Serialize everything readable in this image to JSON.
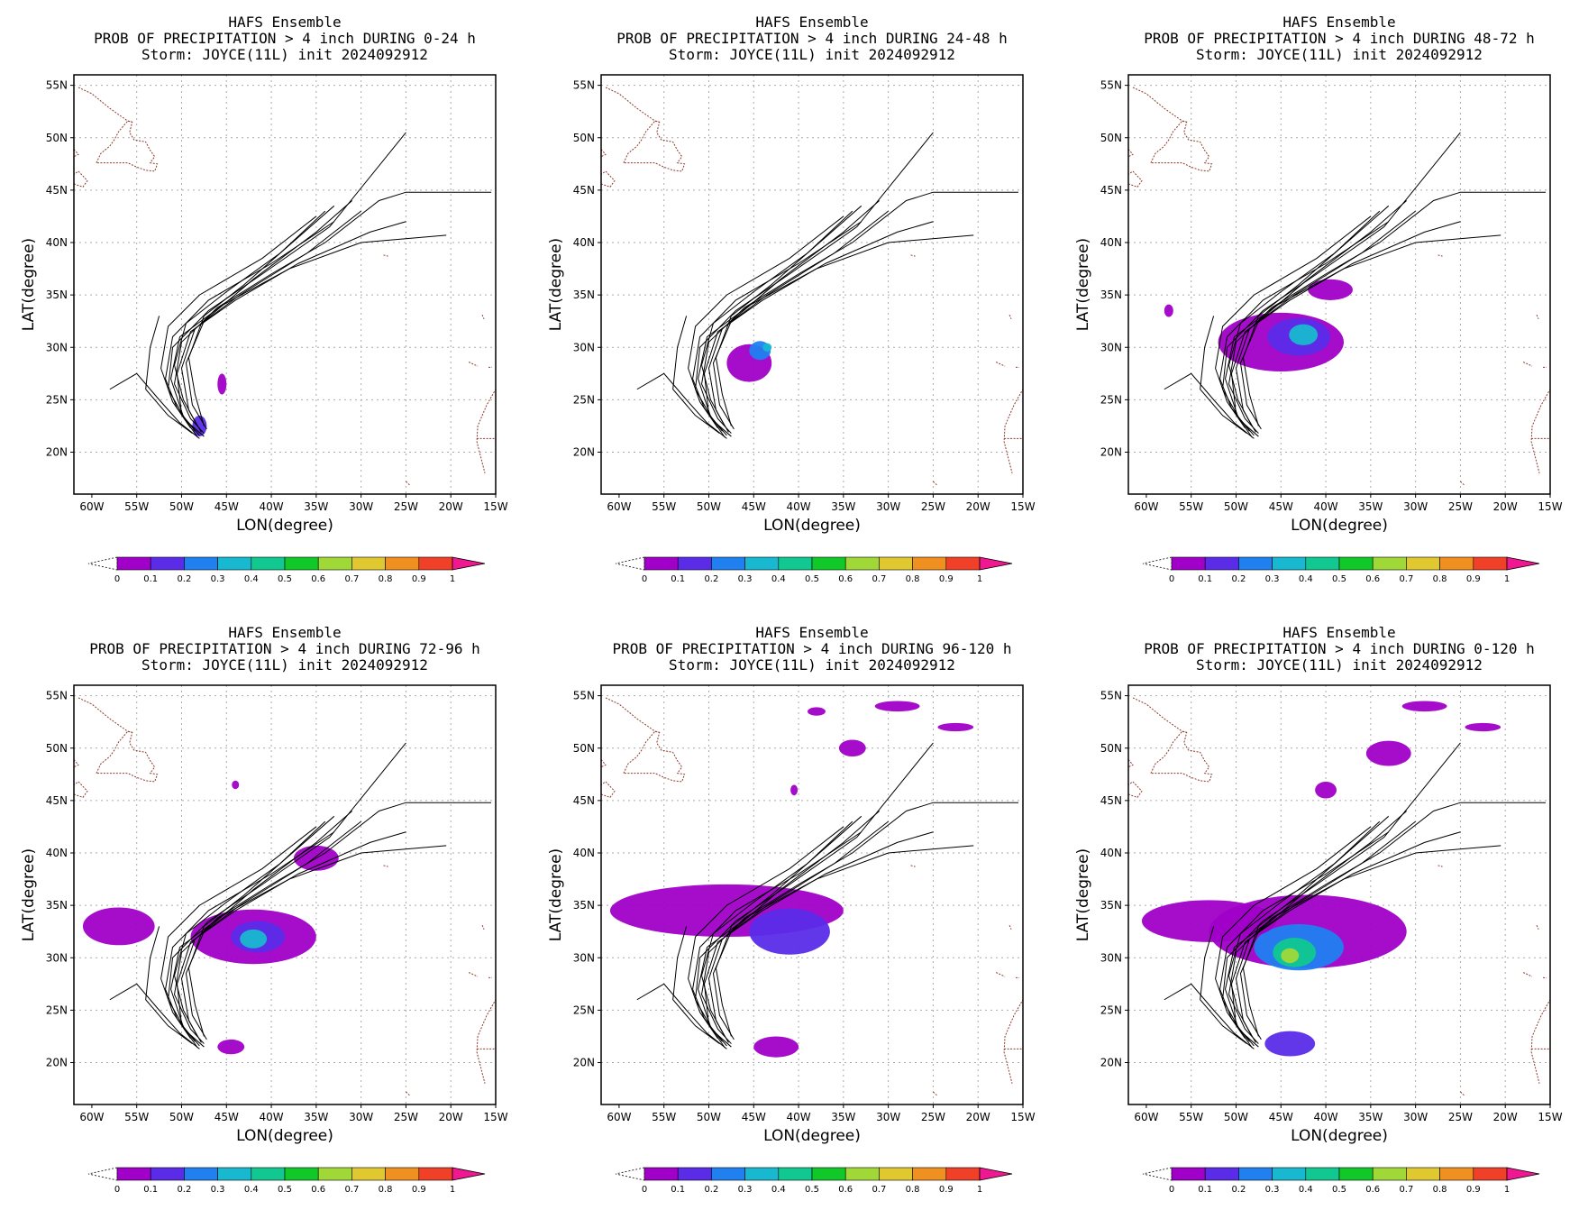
{
  "figure": {
    "panels": [
      {
        "title1": "HAFS Ensemble",
        "title2": "PROB OF PRECIPITATION > 4 inch DURING  0-24 h",
        "title3": "Storm: JOYCE(11L) init 2024092912",
        "period": "0-24 h"
      },
      {
        "title1": "HAFS Ensemble",
        "title2": "PROB OF PRECIPITATION > 4 inch DURING 24-48 h",
        "title3": "Storm: JOYCE(11L) init 2024092912",
        "period": "24-48 h"
      },
      {
        "title1": "HAFS Ensemble",
        "title2": "PROB OF PRECIPITATION > 4 inch DURING 48-72 h",
        "title3": "Storm: JOYCE(11L) init 2024092912",
        "period": "48-72 h"
      },
      {
        "title1": "HAFS Ensemble",
        "title2": "PROB OF PRECIPITATION > 4 inch DURING 72-96 h",
        "title3": "Storm: JOYCE(11L) init 2024092912",
        "period": "72-96 h"
      },
      {
        "title1": "HAFS Ensemble",
        "title2": "PROB OF PRECIPITATION > 4 inch DURING 96-120 h",
        "title3": "Storm: JOYCE(11L) init 2024092912",
        "period": "96-120 h"
      },
      {
        "title1": "HAFS Ensemble",
        "title2": "PROB OF PRECIPITATION > 4 inch DURING 0-120 h",
        "title3": "Storm: JOYCE(11L) init 2024092912",
        "period": "0-120 h"
      }
    ],
    "xlabel": "LON(degree)",
    "ylabel": "LAT(degree)",
    "lon_ticks": [
      "60W",
      "55W",
      "50W",
      "45W",
      "40W",
      "35W",
      "30W",
      "25W",
      "20W",
      "15W"
    ],
    "lat_ticks": [
      "20N",
      "25N",
      "30N",
      "35N",
      "40N",
      "45N",
      "50N",
      "55N"
    ],
    "colorbar_labels": [
      "0",
      "0.1",
      "0.2",
      "0.3",
      "0.4",
      "0.5",
      "0.6",
      "0.7",
      "0.8",
      "0.9",
      "1"
    ],
    "colorbar_colors": [
      "#a000c8",
      "#5a2ce8",
      "#2080f0",
      "#18b8d0",
      "#10c890",
      "#10c828",
      "#a0d838",
      "#e0c830",
      "#f09020",
      "#f04028"
    ],
    "colorbar_over_color": "#f01890"
  },
  "chart_data": {
    "type": "heatmap",
    "xlim": [
      -62,
      -15
    ],
    "ylim": [
      16,
      56
    ],
    "grid": true,
    "ensemble_tracks": [
      [
        [
          -47.5,
          21.5
        ],
        [
          -49.5,
          23
        ],
        [
          -51.5,
          26
        ],
        [
          -51,
          30
        ],
        [
          -47,
          33.5
        ],
        [
          -41,
          37
        ],
        [
          -33.5,
          41.5
        ],
        [
          -25,
          50.5
        ]
      ],
      [
        [
          -47.5,
          21.8
        ],
        [
          -49,
          23.2
        ],
        [
          -50.8,
          26.5
        ],
        [
          -50,
          30.5
        ],
        [
          -46,
          33.8
        ],
        [
          -40,
          37
        ],
        [
          -34,
          40
        ],
        [
          -28,
          44
        ],
        [
          -25,
          44.8
        ],
        [
          -15.5,
          44.8
        ]
      ],
      [
        [
          -48,
          21.6
        ],
        [
          -49.8,
          23.4
        ],
        [
          -51.2,
          27
        ],
        [
          -50.2,
          31
        ],
        [
          -45.5,
          34
        ],
        [
          -38,
          37.5
        ],
        [
          -30,
          40
        ],
        [
          -20.5,
          40.7
        ]
      ],
      [
        [
          -48.2,
          21.4
        ],
        [
          -50,
          23.6
        ],
        [
          -50.5,
          27.5
        ],
        [
          -49,
          31.5
        ],
        [
          -44,
          34.5
        ],
        [
          -37,
          38
        ],
        [
          -29,
          41
        ],
        [
          -25,
          42
        ]
      ],
      [
        [
          -47.8,
          21.9
        ],
        [
          -49.2,
          24
        ],
        [
          -50,
          28
        ],
        [
          -48.5,
          31.8
        ],
        [
          -43.5,
          35
        ],
        [
          -36,
          39
        ],
        [
          -30,
          43
        ]
      ],
      [
        [
          -48.5,
          22
        ],
        [
          -50.5,
          24.2
        ],
        [
          -51.8,
          27
        ],
        [
          -51,
          31
        ],
        [
          -47,
          34.5
        ],
        [
          -40,
          38
        ],
        [
          -33,
          42
        ]
      ],
      [
        [
          -47.2,
          22.2
        ],
        [
          -48.8,
          24.5
        ],
        [
          -49.5,
          28.5
        ],
        [
          -47.5,
          32.5
        ],
        [
          -42,
          36.5
        ],
        [
          -35,
          41
        ],
        [
          -31,
          44
        ]
      ],
      [
        [
          -49,
          22.3
        ],
        [
          -51,
          24.8
        ],
        [
          -52.3,
          28
        ],
        [
          -51.5,
          32
        ],
        [
          -48,
          35
        ],
        [
          -41,
          38.5
        ],
        [
          -35,
          42.5
        ]
      ],
      [
        [
          -48,
          21.3
        ],
        [
          -50.2,
          22.8
        ],
        [
          -52.5,
          25
        ],
        [
          -55,
          27.5
        ],
        [
          -58,
          26
        ]
      ],
      [
        [
          -48.8,
          21.8
        ],
        [
          -51.5,
          23.5
        ],
        [
          -54,
          26
        ],
        [
          -53.5,
          30
        ],
        [
          -52.5,
          33
        ]
      ],
      [
        [
          -47.5,
          22.5
        ],
        [
          -48.5,
          25.5
        ],
        [
          -49.2,
          29
        ],
        [
          -47.5,
          33
        ],
        [
          -43,
          36
        ],
        [
          -37,
          40.5
        ],
        [
          -33,
          43.5
        ]
      ],
      [
        [
          -48.3,
          22.6
        ],
        [
          -49.8,
          25
        ],
        [
          -50.8,
          28.3
        ],
        [
          -49.5,
          32.3
        ],
        [
          -45,
          35.3
        ],
        [
          -39,
          39
        ],
        [
          -34,
          43
        ]
      ]
    ],
    "panels": [
      {
        "period": "0-24 h",
        "prob_areas": [
          {
            "lon": -48,
            "lat": 22.5,
            "rx": 0.8,
            "ry": 1.0,
            "p": 0.12
          },
          {
            "lon": -45.5,
            "lat": 26.5,
            "rx": 0.5,
            "ry": 1.0,
            "p": 0.08
          }
        ]
      },
      {
        "period": "24-48 h",
        "prob_areas": [
          {
            "lon": -45.5,
            "lat": 28.5,
            "rx": 2.5,
            "ry": 1.8,
            "p": 0.08
          },
          {
            "lon": -44.3,
            "lat": 29.7,
            "rx": 1.2,
            "ry": 0.9,
            "p": 0.25
          },
          {
            "lon": -43.5,
            "lat": 30.0,
            "rx": 0.5,
            "ry": 0.4,
            "p": 0.38
          }
        ]
      },
      {
        "period": "48-72 h",
        "prob_areas": [
          {
            "lon": -45,
            "lat": 30.5,
            "rx": 7,
            "ry": 2.8,
            "p": 0.06
          },
          {
            "lon": -43,
            "lat": 31,
            "rx": 3.5,
            "ry": 1.8,
            "p": 0.18
          },
          {
            "lon": -42.5,
            "lat": 31.2,
            "rx": 1.6,
            "ry": 1.0,
            "p": 0.32
          },
          {
            "lon": -57.5,
            "lat": 33.5,
            "rx": 0.5,
            "ry": 0.6,
            "p": 0.05
          },
          {
            "lon": -39.5,
            "lat": 35.5,
            "rx": 2.5,
            "ry": 1.0,
            "p": 0.05
          }
        ]
      },
      {
        "period": "72-96 h",
        "prob_areas": [
          {
            "lon": -42,
            "lat": 32,
            "rx": 7,
            "ry": 2.6,
            "p": 0.06
          },
          {
            "lon": -41.5,
            "lat": 32,
            "rx": 3,
            "ry": 1.5,
            "p": 0.18
          },
          {
            "lon": -42,
            "lat": 31.8,
            "rx": 1.5,
            "ry": 0.9,
            "p": 0.33
          },
          {
            "lon": -57,
            "lat": 33,
            "rx": 4,
            "ry": 1.8,
            "p": 0.05
          },
          {
            "lon": -35,
            "lat": 39.5,
            "rx": 2.5,
            "ry": 1.2,
            "p": 0.05
          },
          {
            "lon": -44.5,
            "lat": 21.5,
            "rx": 1.5,
            "ry": 0.7,
            "p": 0.06
          },
          {
            "lon": -44,
            "lat": 46.5,
            "rx": 0.4,
            "ry": 0.4,
            "p": 0.05
          }
        ]
      },
      {
        "period": "96-120 h",
        "prob_areas": [
          {
            "lon": -48,
            "lat": 34.5,
            "rx": 13,
            "ry": 2.5,
            "p": 0.05
          },
          {
            "lon": -41,
            "lat": 32.5,
            "rx": 4.5,
            "ry": 2.2,
            "p": 0.1
          },
          {
            "lon": -42.5,
            "lat": 21.5,
            "rx": 2.5,
            "ry": 1.0,
            "p": 0.07
          },
          {
            "lon": -29,
            "lat": 54,
            "rx": 2.5,
            "ry": 0.5,
            "p": 0.06
          },
          {
            "lon": -22.5,
            "lat": 52,
            "rx": 2.0,
            "ry": 0.4,
            "p": 0.05
          },
          {
            "lon": -38,
            "lat": 53.5,
            "rx": 1.0,
            "ry": 0.4,
            "p": 0.05
          },
          {
            "lon": -34,
            "lat": 50,
            "rx": 1.5,
            "ry": 0.8,
            "p": 0.05
          },
          {
            "lon": -40.5,
            "lat": 46,
            "rx": 0.4,
            "ry": 0.5,
            "p": 0.05
          }
        ]
      },
      {
        "period": "0-120 h",
        "prob_areas": [
          {
            "lon": -42,
            "lat": 32.5,
            "rx": 11,
            "ry": 3.5,
            "p": 0.08
          },
          {
            "lon": -43,
            "lat": 31,
            "rx": 5,
            "ry": 2.2,
            "p": 0.22
          },
          {
            "lon": -43.5,
            "lat": 30.5,
            "rx": 2.4,
            "ry": 1.4,
            "p": 0.4
          },
          {
            "lon": -44,
            "lat": 30.2,
            "rx": 1.0,
            "ry": 0.7,
            "p": 0.62
          },
          {
            "lon": -53,
            "lat": 33.5,
            "rx": 7.5,
            "ry": 2.0,
            "p": 0.05
          },
          {
            "lon": -44,
            "lat": 21.8,
            "rx": 2.8,
            "ry": 1.2,
            "p": 0.1
          },
          {
            "lon": -29,
            "lat": 54,
            "rx": 2.5,
            "ry": 0.5,
            "p": 0.06
          },
          {
            "lon": -33,
            "lat": 49.5,
            "rx": 2.5,
            "ry": 1.2,
            "p": 0.05
          },
          {
            "lon": -22.5,
            "lat": 52,
            "rx": 2.0,
            "ry": 0.4,
            "p": 0.05
          },
          {
            "lon": -40,
            "lat": 46,
            "rx": 1.2,
            "ry": 0.8,
            "p": 0.05
          }
        ]
      }
    ]
  }
}
